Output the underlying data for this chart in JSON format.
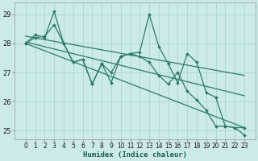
{
  "xlabel": "Humidex (Indice chaleur)",
  "x": [
    0,
    1,
    2,
    3,
    4,
    5,
    6,
    7,
    8,
    9,
    10,
    11,
    12,
    13,
    14,
    15,
    16,
    17,
    18,
    19,
    20,
    21,
    22,
    23
  ],
  "line1": [
    28.0,
    28.3,
    28.2,
    29.1,
    28.0,
    27.35,
    27.45,
    26.6,
    27.3,
    26.65,
    27.55,
    27.65,
    27.7,
    29.0,
    27.9,
    27.3,
    26.65,
    27.65,
    27.35,
    26.3,
    26.15,
    25.15,
    25.1,
    24.85
  ],
  "line2": [
    28.0,
    28.2,
    28.25,
    28.65,
    28.0,
    27.35,
    27.45,
    26.6,
    27.3,
    27.0,
    27.55,
    27.65,
    27.55,
    27.35,
    26.9,
    26.6,
    27.0,
    26.35,
    26.05,
    25.7,
    25.15,
    25.15,
    25.1,
    25.1
  ],
  "trend1_x": [
    0,
    23
  ],
  "trend1_y": [
    28.25,
    26.9
  ],
  "trend2_x": [
    0,
    23
  ],
  "trend2_y": [
    28.05,
    26.2
  ],
  "trend3_x": [
    0,
    23
  ],
  "trend3_y": [
    28.0,
    25.1
  ],
  "line_color": "#2d7a6a",
  "bg_color": "#cceae8",
  "grid_color": "#a8d8d4",
  "ylim": [
    24.7,
    29.4
  ],
  "yticks": [
    25,
    26,
    27,
    28,
    29
  ],
  "xticks": [
    0,
    1,
    2,
    3,
    4,
    5,
    6,
    7,
    8,
    9,
    10,
    11,
    12,
    13,
    14,
    15,
    16,
    17,
    18,
    19,
    20,
    21,
    22,
    23
  ],
  "xlabel_fontsize": 6.5,
  "tick_fontsize": 5.5
}
